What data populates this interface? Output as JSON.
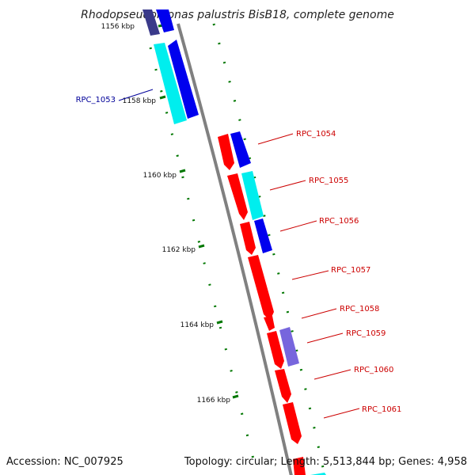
{
  "title": "Rhodopseudomonas palustris BisB18, complete genome",
  "accession": "Accession: NC_007925",
  "summary": "Topology: circular; Length: 5,513,844 bp; Genes: 4,958",
  "colors": {
    "backbone": "#808080",
    "tick": "#007700",
    "label_forward": "#cc0000",
    "label_reverse": "#000099",
    "red": "#ff0000",
    "blue": "#0000ee",
    "cyan": "#00eeee",
    "purple": "#7766dd",
    "navy": "#3a3a8a"
  },
  "ticks": [
    "1156 kbp",
    "1158 kbp",
    "1160 kbp",
    "1162 kbp",
    "1164 kbp",
    "1166 kbp"
  ],
  "labels": [
    {
      "text": "RPC_1053",
      "color": "#000099"
    },
    {
      "text": "RPC_1054",
      "color": "#cc0000"
    },
    {
      "text": "RPC_1055",
      "color": "#cc0000"
    },
    {
      "text": "RPC_1056",
      "color": "#cc0000"
    },
    {
      "text": "RPC_1057",
      "color": "#cc0000"
    },
    {
      "text": "RPC_1058",
      "color": "#cc0000"
    },
    {
      "text": "RPC_1059",
      "color": "#cc0000"
    },
    {
      "text": "RPC_1060",
      "color": "#cc0000"
    },
    {
      "text": "RPC_1061",
      "color": "#cc0000"
    }
  ]
}
